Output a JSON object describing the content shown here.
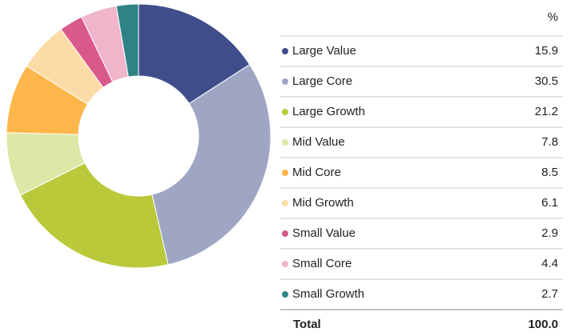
{
  "chart_data": {
    "type": "pie",
    "donut": true,
    "value_header": "%",
    "categories": [
      "Large Value",
      "Large Core",
      "Large Growth",
      "Mid Value",
      "Mid Core",
      "Mid Growth",
      "Small Value",
      "Small Core",
      "Small Growth"
    ],
    "values": [
      15.9,
      30.5,
      21.2,
      7.8,
      8.5,
      6.1,
      2.9,
      4.4,
      2.7
    ],
    "colors": [
      "#3f4e8a",
      "#9ea6c4",
      "#b9c93a",
      "#dce8a6",
      "#fdb64a",
      "#fddba6",
      "#d9598b",
      "#f0b5cb",
      "#2e8484"
    ],
    "total_label": "Total",
    "total_value": "100.0"
  }
}
